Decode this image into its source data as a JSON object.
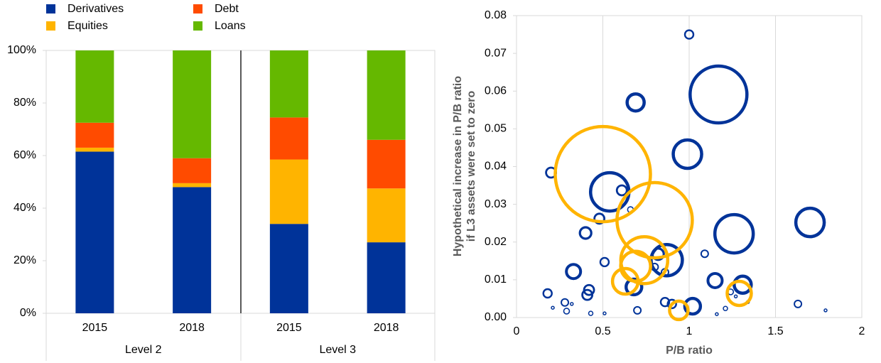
{
  "chart_data": [
    {
      "type": "stacked-bar",
      "categories": [
        "2015",
        "2018",
        "2015",
        "2018"
      ],
      "groups": [
        "Level 2",
        "Level 3"
      ],
      "series": [
        {
          "name": "Derivatives",
          "color": "#003399",
          "values": [
            61.5,
            48,
            34,
            27
          ]
        },
        {
          "name": "Equities",
          "color": "#ffb400",
          "values": [
            1.5,
            1.5,
            24.5,
            20.5
          ]
        },
        {
          "name": "Debt",
          "color": "#ff4b00",
          "values": [
            9.5,
            9.5,
            16,
            18.5
          ]
        },
        {
          "name": "Loans",
          "color": "#65b800",
          "values": [
            27.5,
            41,
            25.5,
            34
          ]
        }
      ],
      "ylim": [
        0,
        100
      ],
      "yticks": [
        {
          "value": 0,
          "label": "0%"
        },
        {
          "value": 20,
          "label": "20%"
        },
        {
          "value": 40,
          "label": "40%"
        },
        {
          "value": 60,
          "label": "60%"
        },
        {
          "value": 80,
          "label": "80%"
        },
        {
          "value": 100,
          "label": "100%"
        }
      ]
    },
    {
      "type": "bubble",
      "xlabel": "P/B ratio",
      "ylabel": [
        "Hypothetical increase in P/B ratio",
        "if L3 assets were set to zero"
      ],
      "series": [
        {
          "color": "#003399",
          "x": [
            1.0,
            1.17,
            0.69,
            0.99,
            0.2,
            0.54,
            0.61,
            0.66,
            0.48,
            0.4,
            1.7,
            1.26,
            0.87,
            0.82,
            1.09,
            0.51,
            0.86,
            0.33,
            0.8,
            1.15,
            1.31,
            0.68,
            0.42,
            0.41,
            0.18,
            1.24,
            1.02,
            0.86,
            0.9,
            0.28,
            1.63,
            0.7,
            1.21,
            0.29,
            0.43,
            0.51,
            0.32,
            0.21,
            1.34,
            1.79,
            1.27,
            1.16
          ],
          "values": [
            0.075,
            0.0591,
            0.057,
            0.0433,
            0.0384,
            0.0333,
            0.0337,
            0.0286,
            0.0262,
            0.0224,
            0.0252,
            0.0222,
            0.0152,
            0.0168,
            0.0169,
            0.0147,
            0.012,
            0.0122,
            0.0134,
            0.0098,
            0.0087,
            0.0081,
            0.0073,
            0.006,
            0.0064,
            0.0068,
            0.003,
            0.0041,
            0.0036,
            0.004,
            0.0036,
            0.0019,
            0.0024,
            0.0017,
            0.0011,
            0.0011,
            0.0036,
            0.0026,
            0.0041,
            0.0019,
            0.0056,
            0.0009
          ],
          "sizes": [
            6,
            40,
            12,
            20,
            7,
            27,
            7,
            4,
            7,
            8,
            20,
            27,
            22,
            8,
            5,
            6,
            5,
            10,
            5,
            10,
            12,
            11,
            7,
            7,
            6,
            4,
            11,
            6,
            6,
            5,
            5,
            5,
            3,
            4,
            3,
            2,
            2,
            2,
            2,
            2,
            2,
            2
          ]
        },
        {
          "color": "#ffb400",
          "x": [
            0.5,
            0.8,
            0.74,
            0.69,
            0.63,
            1.29,
            0.94
          ],
          "values": [
            0.038,
            0.0258,
            0.0152,
            0.0136,
            0.0096,
            0.0064,
            0.0019
          ],
          "sizes": [
            67,
            53,
            33,
            21,
            18,
            17,
            13
          ]
        }
      ],
      "xlim": [
        0,
        2
      ],
      "xticks": [
        0,
        0.5,
        1,
        1.5,
        2
      ],
      "ylim": [
        0,
        0.08
      ],
      "yticks": [
        {
          "value": 0,
          "label": "0.00"
        },
        0.01,
        0.02,
        0.03,
        0.04,
        0.05,
        0.06,
        0.07,
        0.08
      ],
      "grid": true
    }
  ]
}
